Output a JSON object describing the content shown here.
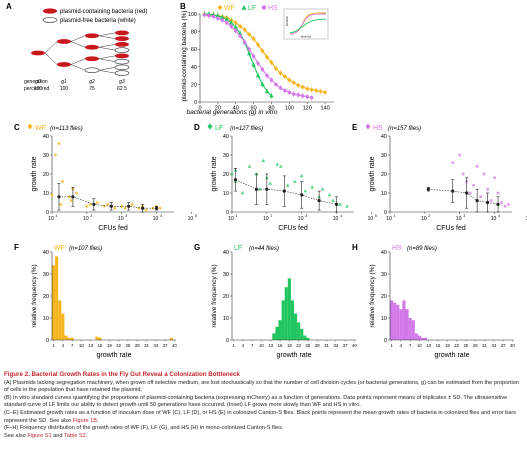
{
  "colors": {
    "wf": "#f5b51e",
    "lf": "#1fc55e",
    "hs": "#d278e8",
    "black": "#222222",
    "red": "#c0272d",
    "bacteria_red": "#c8181e"
  },
  "panelA": {
    "letter": "A",
    "legend_red": "plasmid-containing bacteria (red)",
    "legend_white": "plasmid-free bacteria (white)",
    "row1_label": "generation",
    "row2_label": "percent red",
    "gen_labels": [
      "g0",
      "g1",
      "g2",
      "g3"
    ],
    "percent": [
      "100",
      "100",
      "75",
      "62.5"
    ]
  },
  "panelB": {
    "letter": "B",
    "ylabel": "plasmid-containing bacteria (%)",
    "xlabel": "bacterial generations (g) in vitro",
    "yticks": [
      "0",
      "20",
      "40",
      "60",
      "80",
      "100"
    ],
    "xticks": [
      "0",
      "20",
      "40",
      "60",
      "80",
      "100",
      "120",
      "140"
    ],
    "legend": [
      "WF",
      "LF",
      "HS"
    ],
    "inset_ylabel": "OD600",
    "inset_xlabel": "time (h)"
  },
  "scatter_panels": [
    {
      "letter": "C",
      "strain": "WF",
      "n": "(n=113 flies)",
      "ylabel": "growth rate",
      "xlabel": "CFUs fed",
      "yticks": [
        "0",
        "10",
        "20",
        "30",
        "40"
      ],
      "xticks": [
        "10",
        "10",
        "10",
        "10",
        "10"
      ],
      "xexp": [
        "1",
        "2",
        "3",
        "4",
        "5"
      ]
    },
    {
      "letter": "D",
      "strain": "LF",
      "n": "(n=127 flies)",
      "ylabel": "growth rate",
      "xlabel": "CFUs fed",
      "yticks": [
        "0",
        "10",
        "20",
        "30",
        "40"
      ],
      "xticks": [
        "10",
        "10",
        "10",
        "10",
        "10"
      ],
      "xexp": [
        "1",
        "2",
        "3",
        "4",
        "5"
      ]
    },
    {
      "letter": "E",
      "strain": "HS",
      "n": "(n=157 flies)",
      "ylabel": "growth rate",
      "xlabel": "CFUs fed",
      "yticks": [
        "0",
        "10",
        "20",
        "30",
        "40"
      ],
      "xticks": [
        "10",
        "10",
        "10",
        "10",
        "10"
      ],
      "xexp": [
        "1",
        "2",
        "3",
        "4",
        "5"
      ]
    }
  ],
  "hist_panels": [
    {
      "letter": "F",
      "strain": "WF",
      "n": "(n=107 flies)",
      "ylabel": "relative frequency (%)",
      "xlabel": "growth rate",
      "yticks": [
        "0",
        "10",
        "20",
        "30",
        "40"
      ],
      "xticks": [
        "1",
        "4",
        "7",
        "10",
        "13",
        "16",
        "19",
        "22",
        "25",
        "28",
        "31",
        "34",
        "37",
        "40"
      ]
    },
    {
      "letter": "G",
      "strain": "LF",
      "n": "(n=44 flies)",
      "ylabel": "relative frequency (%)",
      "xlabel": "growth rate",
      "yticks": [
        "0",
        "10",
        "20",
        "30",
        "40"
      ],
      "xticks": [
        "1",
        "4",
        "7",
        "10",
        "13",
        "16",
        "19",
        "22",
        "25",
        "28",
        "31",
        "34",
        "37",
        "40"
      ]
    },
    {
      "letter": "H",
      "strain": "HS",
      "n": "(n=89 flies)",
      "ylabel": "relative frequency (%)",
      "xlabel": "growth rate",
      "yticks": [
        "0",
        "10",
        "20",
        "30",
        "40"
      ],
      "xticks": [
        "1",
        "4",
        "7",
        "10",
        "13",
        "16",
        "19",
        "22",
        "25",
        "28",
        "31",
        "34",
        "37",
        "40"
      ]
    }
  ],
  "chart_data": [
    {
      "type": "scatter",
      "title": "B",
      "xlabel": "bacterial generations (g) in vitro",
      "ylabel": "plasmid-containing bacteria (%)",
      "xlim": [
        0,
        150
      ],
      "ylim": [
        0,
        100
      ],
      "series": [
        {
          "name": "WF",
          "x": [
            5,
            10,
            15,
            20,
            25,
            30,
            35,
            40,
            45,
            50,
            55,
            60,
            65,
            70,
            75,
            80,
            85,
            90,
            95,
            100,
            105,
            110,
            115,
            120,
            125,
            130,
            135,
            140
          ],
          "y": [
            100,
            99,
            99,
            98,
            97,
            96,
            93,
            90,
            86,
            82,
            77,
            72,
            65,
            58,
            51,
            45,
            38,
            33,
            29,
            25,
            22,
            19,
            17,
            15,
            14,
            13,
            12,
            11
          ]
        },
        {
          "name": "LF",
          "x": [
            5,
            10,
            15,
            20,
            25,
            30,
            35,
            40,
            45,
            50,
            55,
            60,
            65,
            70,
            75,
            80
          ],
          "y": [
            100,
            100,
            99,
            98,
            96,
            94,
            90,
            85,
            78,
            68,
            55,
            42,
            30,
            20,
            12,
            7
          ]
        },
        {
          "name": "HS",
          "x": [
            5,
            10,
            15,
            20,
            25,
            30,
            35,
            40,
            45,
            50,
            55,
            60,
            65,
            70,
            75,
            80,
            85,
            90,
            95,
            100,
            105,
            110,
            115,
            120,
            125
          ],
          "y": [
            99,
            98,
            97,
            95,
            93,
            90,
            86,
            81,
            75,
            68,
            60,
            52,
            44,
            37,
            30,
            25,
            20,
            16,
            13,
            11,
            9,
            8,
            7,
            6,
            5
          ]
        }
      ]
    },
    {
      "type": "scatter",
      "title": "C",
      "xlabel": "CFUs fed",
      "ylabel": "growth rate",
      "xscale": "log",
      "ylim": [
        0,
        40
      ],
      "points_x": [
        1.0,
        1.1,
        1.2,
        1.25,
        1.3,
        1.5,
        1.55,
        1.6,
        1.7,
        2.0,
        2.1,
        2.3,
        2.5,
        2.6,
        2.8,
        3.0,
        3.1,
        3.3,
        3.5,
        3.6,
        3.7,
        3.9,
        4.0,
        4.1
      ],
      "points_y": [
        9,
        30,
        36,
        4,
        16,
        8,
        6,
        12,
        10,
        3,
        4,
        5,
        3,
        4,
        2,
        3,
        2,
        4,
        2,
        3,
        1,
        2,
        3,
        2
      ],
      "means_x": [
        1.2,
        1.6,
        2.2,
        2.7,
        3.2,
        3.6,
        4.0
      ],
      "means_y": [
        8,
        8,
        4,
        3,
        3,
        2,
        2
      ],
      "sd": [
        7,
        5,
        3,
        2,
        2,
        2,
        1
      ]
    },
    {
      "type": "scatter",
      "title": "D",
      "xlabel": "CFUs fed",
      "ylabel": "growth rate",
      "xscale": "log",
      "ylim": [
        0,
        40
      ],
      "points_x": [
        1.0,
        1.1,
        1.1,
        1.3,
        1.5,
        1.7,
        1.8,
        1.9,
        2.0,
        2.1,
        2.3,
        2.4,
        2.6,
        2.8,
        3.0,
        3.1,
        3.3,
        3.5,
        3.6,
        3.8,
        3.9,
        4.1,
        4.3
      ],
      "points_y": [
        20,
        22,
        16,
        10,
        24,
        20,
        12,
        27,
        18,
        15,
        25,
        24,
        14,
        16,
        19,
        11,
        13,
        8,
        12,
        9,
        6,
        4,
        3
      ],
      "means_x": [
        1.1,
        1.7,
        2.0,
        2.5,
        3.0,
        3.5,
        4.0
      ],
      "means_y": [
        17,
        12,
        12,
        11,
        9,
        6,
        4
      ],
      "sd": [
        6,
        8,
        8,
        8,
        7,
        5,
        4
      ]
    },
    {
      "type": "scatter",
      "title": "E",
      "xlabel": "CFUs fed",
      "ylabel": "growth rate",
      "xscale": "log",
      "ylim": [
        0,
        40
      ],
      "points_x": [
        2.1,
        2.8,
        3.0,
        3.1,
        3.2,
        3.3,
        3.4,
        3.5,
        3.6,
        3.7,
        3.8,
        3.9,
        4.0,
        4.1,
        4.2,
        4.3,
        4.4
      ],
      "points_y": [
        12,
        26,
        30,
        20,
        16,
        10,
        14,
        24,
        8,
        20,
        12,
        6,
        18,
        10,
        5,
        3,
        4
      ],
      "means_x": [
        2.1,
        2.8,
        3.2,
        3.5,
        3.8,
        4.1
      ],
      "means_y": [
        12,
        11,
        10,
        6,
        5,
        4
      ],
      "sd": [
        1,
        6,
        8,
        6,
        5,
        4
      ]
    },
    {
      "type": "bar",
      "title": "F",
      "xlabel": "growth rate",
      "ylabel": "relative frequency (%)",
      "ylim": [
        0,
        40
      ],
      "categories": [
        "1",
        "2",
        "3",
        "4",
        "5",
        "6",
        "7",
        "8",
        "9",
        "10",
        "11",
        "12",
        "13",
        "14",
        "15",
        "16",
        "17",
        "18",
        "19",
        "20",
        "21",
        "22",
        "23",
        "24",
        "25",
        "26",
        "27",
        "28",
        "29",
        "30",
        "31",
        "32",
        "33",
        "34",
        "35",
        "36",
        "37",
        "38",
        "39",
        "40"
      ],
      "values": [
        34,
        38,
        18,
        12,
        2,
        1,
        1,
        0,
        0,
        0,
        0,
        0,
        0,
        0,
        1.5,
        1,
        0,
        0,
        0,
        0,
        0,
        0,
        0,
        0,
        0,
        0,
        0,
        0,
        0,
        0,
        0,
        0,
        0,
        0,
        0,
        0,
        0,
        0,
        1,
        0
      ]
    },
    {
      "type": "bar",
      "title": "G",
      "xlabel": "growth rate",
      "ylabel": "relative frequency (%)",
      "ylim": [
        0,
        40
      ],
      "categories": [
        "1",
        "2",
        "3",
        "4",
        "5",
        "6",
        "7",
        "8",
        "9",
        "10",
        "11",
        "12",
        "13",
        "14",
        "15",
        "16",
        "17",
        "18",
        "19",
        "20",
        "21",
        "22",
        "23",
        "24",
        "25",
        "26",
        "27",
        "28",
        "29",
        "30",
        "31",
        "32",
        "33",
        "34",
        "35",
        "36",
        "37",
        "38",
        "39",
        "40"
      ],
      "values": [
        0,
        0,
        0,
        0,
        0,
        0,
        0,
        0,
        0,
        0,
        0,
        0,
        0,
        3,
        6,
        9,
        18,
        24,
        28,
        18,
        12,
        8,
        5,
        2,
        1,
        0,
        0,
        0,
        0,
        0,
        0,
        0,
        0,
        0,
        0,
        0,
        0,
        0,
        0,
        0
      ]
    },
    {
      "type": "bar",
      "title": "H",
      "xlabel": "growth rate",
      "ylabel": "relative frequency (%)",
      "ylim": [
        0,
        40
      ],
      "categories": [
        "1",
        "2",
        "3",
        "4",
        "5",
        "6",
        "7",
        "8",
        "9",
        "10",
        "11",
        "12",
        "13",
        "14",
        "15",
        "16",
        "17",
        "18",
        "19",
        "20",
        "21",
        "22",
        "23",
        "24",
        "25",
        "26",
        "27",
        "28",
        "29",
        "30",
        "31",
        "32",
        "33",
        "34",
        "35",
        "36",
        "37",
        "38",
        "39",
        "40"
      ],
      "values": [
        18,
        17,
        16,
        14,
        18,
        14,
        10,
        9,
        3,
        2,
        1,
        1,
        0,
        0,
        0,
        0,
        0,
        0,
        0,
        0,
        0,
        0,
        0,
        0,
        0,
        0,
        0,
        0,
        0,
        0,
        0,
        0,
        0,
        0,
        0,
        0,
        0,
        0,
        0,
        0
      ]
    }
  ],
  "caption": {
    "title": "Figure 2.  Bacterial Growth Rates in the Fly Gut Reveal a Colonization Bottleneck",
    "A": "(A) Plasmids lacking segregation machinery, when grown off selective medium, are lost stochastically so that the number of cell division cycles (or bacterial generations, g) can be estimated from the proportion of cells in the population that have retained the plasmid.",
    "B": "(B) In vitro standard curves quantifying the proportions of plasmid-containing bacteria (expressing mCherry) as a function of generations. Data points represent means of triplicates ± SD. The ultrasensitive standard curve of LF limits our ability to detect growth until 50 generations have occurred. (Inset) LF grows more slowly than WF and HS in vitro.",
    "CE_pre": "(C–E) Estimated growth rates as a function of inoculum dose of WF (C), LF (D), or HS (E) in colonized Canton-S flies. Black points represent the mean growth rates of bacteria in colonized flies and error bars represent the SD. See also ",
    "CE_link": "Figure 1B",
    "FH": "(F–H) Frequency distribution of the growth rates of WF (F), LF (G), and HS (H) in mono-colonized Canton-S flies.",
    "see_pre": "See also ",
    "see_link1": "Figure S1",
    "see_and": " and ",
    "see_link2": "Table S2"
  }
}
